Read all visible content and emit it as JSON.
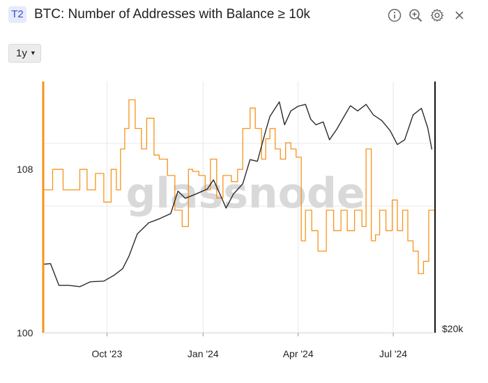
{
  "header": {
    "badge": "T2",
    "title": "BTC: Number of Addresses with Balance ≥ 10k",
    "icons": [
      "info-icon",
      "zoom-in-icon",
      "gear-icon",
      "close-icon"
    ]
  },
  "controls": {
    "range_label": "1y"
  },
  "watermark": "glassnode",
  "colors": {
    "orange": "#f7931a",
    "black": "#2a2a2a",
    "grid": "#e8e8e8",
    "badge_bg": "#e6ebfb",
    "badge_fg": "#3b4bc8"
  },
  "chart_data": {
    "type": "line",
    "title": "BTC: Number of Addresses with Balance ≥ 10k",
    "x_ticks": [
      "Oct '23",
      "Jan '24",
      "Apr '24",
      "Jul '24"
    ],
    "x_range": [
      "2023-08-01",
      "2024-08-10"
    ],
    "left_axis": {
      "scale": "linear",
      "range": [
        100,
        112.3
      ],
      "ticks": [
        "100",
        "108"
      ]
    },
    "right_axis": {
      "scale": "log",
      "ticks": [
        "$20k"
      ]
    },
    "grid": true,
    "series": [
      {
        "color": "#f7931a",
        "axis": "left",
        "step": true,
        "x": [
          "2023-08-01",
          "2023-08-10",
          "2023-08-20",
          "2023-09-01",
          "2023-09-05",
          "2023-09-12",
          "2023-09-20",
          "2023-09-28",
          "2023-10-05",
          "2023-10-10",
          "2023-10-14",
          "2023-10-18",
          "2023-10-22",
          "2023-10-28",
          "2023-11-03",
          "2023-11-08",
          "2023-11-15",
          "2023-11-20",
          "2023-11-28",
          "2023-12-05",
          "2023-12-12",
          "2023-12-18",
          "2023-12-22",
          "2023-12-28",
          "2024-01-03",
          "2024-01-08",
          "2024-01-14",
          "2024-01-20",
          "2024-01-28",
          "2024-02-03",
          "2024-02-08",
          "2024-02-15",
          "2024-02-20",
          "2024-02-26",
          "2024-03-01",
          "2024-03-05",
          "2024-03-10",
          "2024-03-15",
          "2024-03-20",
          "2024-03-25",
          "2024-03-30",
          "2024-04-04",
          "2024-04-08",
          "2024-04-14",
          "2024-04-20",
          "2024-04-28",
          "2024-05-05",
          "2024-05-12",
          "2024-05-18",
          "2024-05-25",
          "2024-06-01",
          "2024-06-05",
          "2024-06-10",
          "2024-06-14",
          "2024-06-18",
          "2024-06-24",
          "2024-06-30",
          "2024-07-05",
          "2024-07-10",
          "2024-07-15",
          "2024-07-20",
          "2024-07-25",
          "2024-07-30",
          "2024-08-04",
          "2024-08-10"
        ],
        "y": [
          107,
          108,
          107,
          107,
          108,
          107,
          107.8,
          106.4,
          108,
          107,
          109,
          110,
          111.4,
          110,
          109,
          110.5,
          108.7,
          108.5,
          107.7,
          106,
          105.2,
          108,
          107.9,
          107.7,
          107,
          108.5,
          106.6,
          107.7,
          107.4,
          108,
          110,
          111,
          110,
          108.5,
          109.5,
          110,
          109,
          108.5,
          109.3,
          109,
          108.6,
          104.5,
          106,
          105,
          104,
          106,
          105,
          106,
          105,
          106,
          105.2,
          109,
          104.5,
          104.8,
          106,
          105,
          106.5,
          105,
          106,
          104.5,
          104,
          102.9,
          103.5,
          106,
          103.5
        ]
      },
      {
        "color": "#2a2a2a",
        "axis": "right",
        "x": [
          "2023-08-01",
          "2023-08-08",
          "2023-08-16",
          "2023-08-25",
          "2023-09-05",
          "2023-09-15",
          "2023-09-28",
          "2023-10-08",
          "2023-10-16",
          "2023-10-22",
          "2023-10-30",
          "2023-11-10",
          "2023-11-20",
          "2023-12-01",
          "2023-12-08",
          "2023-12-15",
          "2023-12-25",
          "2024-01-05",
          "2024-01-11",
          "2024-01-18",
          "2024-01-23",
          "2024-01-30",
          "2024-02-08",
          "2024-02-15",
          "2024-02-22",
          "2024-03-01",
          "2024-03-05",
          "2024-03-10",
          "2024-03-14",
          "2024-03-19",
          "2024-03-25",
          "2024-04-01",
          "2024-04-08",
          "2024-04-13",
          "2024-04-18",
          "2024-04-25",
          "2024-05-01",
          "2024-05-08",
          "2024-05-15",
          "2024-05-21",
          "2024-05-28",
          "2024-06-05",
          "2024-06-12",
          "2024-06-20",
          "2024-06-28",
          "2024-07-05",
          "2024-07-12",
          "2024-07-20",
          "2024-07-28",
          "2024-08-03",
          "2024-08-07"
        ],
        "y": [
          29200,
          29300,
          26000,
          26000,
          25800,
          26500,
          26600,
          27500,
          28500,
          30500,
          34500,
          36700,
          37500,
          38600,
          43700,
          42000,
          43000,
          44200,
          46500,
          42500,
          39800,
          43000,
          45500,
          52000,
          51500,
          61000,
          66000,
          69000,
          71500,
          63000,
          68000,
          69800,
          70500,
          65000,
          63000,
          64000,
          58000,
          61500,
          66000,
          70000,
          68000,
          70500,
          66500,
          64500,
          61000,
          56500,
          58000,
          66500,
          69000,
          62000,
          55000
        ]
      }
    ]
  }
}
